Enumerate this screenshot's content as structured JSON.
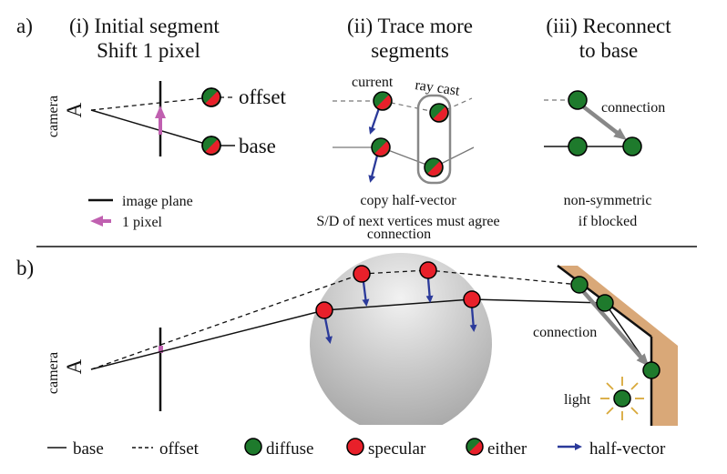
{
  "panel_a": {
    "label": "a)",
    "col1": {
      "title1": "(i) Initial segment",
      "title2": "Shift 1 pixel",
      "camera": "camera",
      "offset": "offset",
      "base": "base",
      "legend_line": "image plane",
      "legend_arrow": "1 pixel"
    },
    "col2": {
      "title1": "(ii) Trace more",
      "title2": "segments",
      "current": "current",
      "ray_cast": "ray cast",
      "caption1": "copy half-vector",
      "caption2": "S/D  of next vertices must agree",
      "caption3": "connection"
    },
    "col3": {
      "title1": "(iii) Reconnect",
      "title2": "to base",
      "connection": "connection",
      "caption1": "non-symmetric",
      "caption2": "if blocked"
    }
  },
  "panel_b": {
    "label": "b)",
    "camera": "camera",
    "connection": "connection",
    "light": "light"
  },
  "legend": {
    "base": "base",
    "offset": "offset",
    "diffuse": "diffuse",
    "specular": "specular",
    "either": "either",
    "half_vector": "half-vector"
  },
  "colors": {
    "diffuse": "#1e7a2c",
    "specular": "#e8202a",
    "half_vector": "#2b3a9a",
    "pixel_arrow": "#c060b0",
    "wall": "#d9a878",
    "connection_arrow": "#888888",
    "light_rays": "#d8a838"
  }
}
